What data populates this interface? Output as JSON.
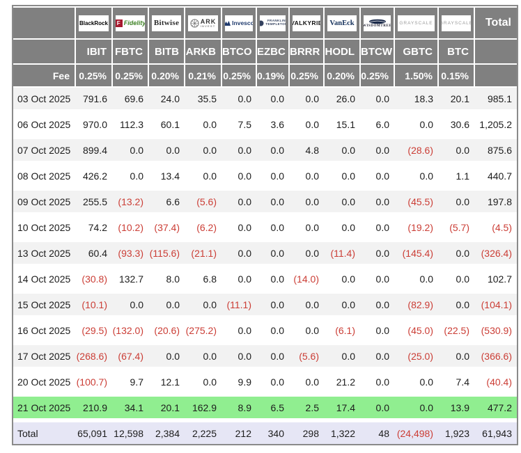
{
  "colors": {
    "header_bg": "#808080",
    "row_alt_bg": "#f2f2f2",
    "highlight_row_bg": "#90ee90",
    "total_row_bg": "#e6e6f5",
    "negative": "#cb3d35",
    "header_text": "#ffffff",
    "body_text": "#1c1c1c"
  },
  "header": {
    "total_label": "Total",
    "fee_label": "Fee",
    "providers": [
      {
        "name": "BlackRock",
        "logo": "blackrock-logo",
        "ticker": "IBIT",
        "fee": "0.25%"
      },
      {
        "name": "Fidelity",
        "logo": "fidelity-logo",
        "ticker": "FBTC",
        "fee": "0.25%"
      },
      {
        "name": "Bitwise",
        "logo": "bitwise-logo",
        "ticker": "BITB",
        "fee": "0.20%"
      },
      {
        "name": "ARK Invest",
        "logo": "ark-invest-logo",
        "ticker": "ARKB",
        "fee": "0.21%"
      },
      {
        "name": "Invesco",
        "logo": "invesco-logo",
        "ticker": "BTCO",
        "fee": "0.25%"
      },
      {
        "name": "Franklin Templeton",
        "logo": "franklin-templeton-logo",
        "ticker": "EZBC",
        "fee": "0.19%"
      },
      {
        "name": "VALKYRIE",
        "logo": "valkyrie-logo",
        "ticker": "BRRR",
        "fee": "0.25%"
      },
      {
        "name": "VanEck",
        "logo": "vaneck-logo",
        "ticker": "HODL",
        "fee": "0.20%"
      },
      {
        "name": "WisdomTree",
        "logo": "wisdomtree-logo",
        "ticker": "BTCW",
        "fee": "0.25%"
      },
      {
        "name": "Grayscale",
        "logo": "grayscale-logo",
        "ticker": "GBTC",
        "fee": "1.50%"
      },
      {
        "name": "Grayscale",
        "logo": "grayscale-logo",
        "ticker": "BTC",
        "fee": "0.15%"
      }
    ]
  },
  "rows": [
    {
      "date": "03 Oct 2025",
      "values": [
        "791.6",
        "69.6",
        "24.0",
        "35.5",
        "0.0",
        "0.0",
        "0.0",
        "26.0",
        "0.0",
        "18.3",
        "20.1"
      ],
      "total": "985.1",
      "highlight": false
    },
    {
      "date": "06 Oct 2025",
      "values": [
        "970.0",
        "112.3",
        "60.1",
        "0.0",
        "7.5",
        "3.6",
        "0.0",
        "15.1",
        "6.0",
        "0.0",
        "30.6"
      ],
      "total": "1,205.2",
      "highlight": false
    },
    {
      "date": "07 Oct 2025",
      "values": [
        "899.4",
        "0.0",
        "0.0",
        "0.0",
        "0.0",
        "0.0",
        "4.8",
        "0.0",
        "0.0",
        "(28.6)",
        "0.0"
      ],
      "total": "875.6",
      "highlight": false
    },
    {
      "date": "08 Oct 2025",
      "values": [
        "426.2",
        "0.0",
        "13.4",
        "0.0",
        "0.0",
        "0.0",
        "0.0",
        "0.0",
        "0.0",
        "0.0",
        "1.1"
      ],
      "total": "440.7",
      "highlight": false
    },
    {
      "date": "09 Oct 2025",
      "values": [
        "255.5",
        "(13.2)",
        "6.6",
        "(5.6)",
        "0.0",
        "0.0",
        "0.0",
        "0.0",
        "0.0",
        "(45.5)",
        "0.0"
      ],
      "total": "197.8",
      "highlight": false
    },
    {
      "date": "10 Oct 2025",
      "values": [
        "74.2",
        "(10.2)",
        "(37.4)",
        "(6.2)",
        "0.0",
        "0.0",
        "0.0",
        "0.0",
        "0.0",
        "(19.2)",
        "(5.7)"
      ],
      "total": "(4.5)",
      "highlight": false
    },
    {
      "date": "13 Oct 2025",
      "values": [
        "60.4",
        "(93.3)",
        "(115.6)",
        "(21.1)",
        "0.0",
        "0.0",
        "0.0",
        "(11.4)",
        "0.0",
        "(145.4)",
        "0.0"
      ],
      "total": "(326.4)",
      "highlight": false
    },
    {
      "date": "14 Oct 2025",
      "values": [
        "(30.8)",
        "132.7",
        "8.0",
        "6.8",
        "0.0",
        "0.0",
        "(14.0)",
        "0.0",
        "0.0",
        "0.0",
        "0.0"
      ],
      "total": "102.7",
      "highlight": false
    },
    {
      "date": "15 Oct 2025",
      "values": [
        "(10.1)",
        "0.0",
        "0.0",
        "0.0",
        "(11.1)",
        "0.0",
        "0.0",
        "0.0",
        "0.0",
        "(82.9)",
        "0.0"
      ],
      "total": "(104.1)",
      "highlight": false
    },
    {
      "date": "16 Oct 2025",
      "values": [
        "(29.5)",
        "(132.0)",
        "(20.6)",
        "(275.2)",
        "0.0",
        "0.0",
        "0.0",
        "(6.1)",
        "0.0",
        "(45.0)",
        "(22.5)"
      ],
      "total": "(530.9)",
      "highlight": false
    },
    {
      "date": "17 Oct 2025",
      "values": [
        "(268.6)",
        "(67.4)",
        "0.0",
        "0.0",
        "0.0",
        "0.0",
        "(5.6)",
        "0.0",
        "0.0",
        "(25.0)",
        "0.0"
      ],
      "total": "(366.6)",
      "highlight": false
    },
    {
      "date": "20 Oct 2025",
      "values": [
        "(100.7)",
        "9.7",
        "12.1",
        "0.0",
        "9.9",
        "0.0",
        "0.0",
        "21.2",
        "0.0",
        "0.0",
        "7.4"
      ],
      "total": "(40.4)",
      "highlight": false
    },
    {
      "date": "21 Oct 2025",
      "values": [
        "210.9",
        "34.1",
        "20.1",
        "162.9",
        "8.9",
        "6.5",
        "2.5",
        "17.4",
        "0.0",
        "0.0",
        "13.9"
      ],
      "total": "477.2",
      "highlight": true
    }
  ],
  "total_row": {
    "label": "Total",
    "values": [
      "65,091",
      "12,598",
      "2,384",
      "2,225",
      "212",
      "340",
      "298",
      "1,322",
      "48",
      "(24,498)",
      "1,923"
    ],
    "total": "61,943"
  }
}
